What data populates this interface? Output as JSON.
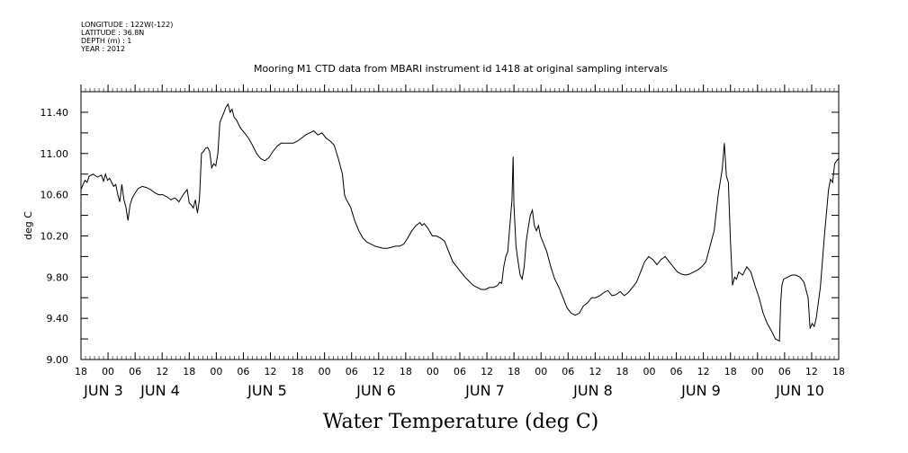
{
  "header_info": [
    "LONGITUDE : 122W(-122)",
    "LATITUDE : 36.8N",
    "DEPTH (m) : 1",
    "YEAR : 2012"
  ],
  "chart_data": {
    "type": "line",
    "title": "Mooring M1 CTD data from MBARI instrument id 1418 at original sampling intervals",
    "ylabel": "deg C",
    "xlabel": "Water Temperature (deg C)",
    "ylim": [
      9.0,
      11.6
    ],
    "y_ticks": [
      "9.00",
      "9.40",
      "9.80",
      "10.20",
      "10.60",
      "11.00",
      "11.40"
    ],
    "xlim_hours": [
      66,
      234
    ],
    "x_hour_ticks": [
      "18",
      "00",
      "06",
      "12",
      "18",
      "00",
      "06",
      "12",
      "18",
      "00",
      "06",
      "12",
      "18",
      "00",
      "06",
      "12",
      "18",
      "00",
      "06",
      "12",
      "18",
      "00",
      "06",
      "12",
      "18",
      "00",
      "06",
      "12",
      "18"
    ],
    "x_day_labels": [
      "JUN  3",
      "JUN  4",
      "JUN  5",
      "JUN  6",
      "JUN  7",
      "JUN  8",
      "JUN  9",
      "JUN 10"
    ],
    "series": [
      {
        "values": [
          [
            66.0,
            10.65
          ],
          [
            66.5,
            10.7
          ],
          [
            67.0,
            10.74
          ],
          [
            67.5,
            10.72
          ],
          [
            68.0,
            10.78
          ],
          [
            69.0,
            10.8
          ],
          [
            70.0,
            10.77
          ],
          [
            71.0,
            10.79
          ],
          [
            71.5,
            10.73
          ],
          [
            72.0,
            10.8
          ],
          [
            72.5,
            10.74
          ],
          [
            73.0,
            10.76
          ],
          [
            73.5,
            10.72
          ],
          [
            74.0,
            10.68
          ],
          [
            74.5,
            10.7
          ],
          [
            75.0,
            10.6
          ],
          [
            75.5,
            10.53
          ],
          [
            76.0,
            10.7
          ],
          [
            76.5,
            10.55
          ],
          [
            77.0,
            10.48
          ],
          [
            77.5,
            10.35
          ],
          [
            78.0,
            10.5
          ],
          [
            78.5,
            10.56
          ],
          [
            79.0,
            10.6
          ],
          [
            80.0,
            10.66
          ],
          [
            81.0,
            10.68
          ],
          [
            82.0,
            10.67
          ],
          [
            83.0,
            10.65
          ],
          [
            84.0,
            10.62
          ],
          [
            85.0,
            10.6
          ],
          [
            86.0,
            10.6
          ],
          [
            87.0,
            10.58
          ],
          [
            88.0,
            10.55
          ],
          [
            89.0,
            10.57
          ],
          [
            90.0,
            10.53
          ],
          [
            91.0,
            10.6
          ],
          [
            92.0,
            10.65
          ],
          [
            92.5,
            10.52
          ],
          [
            93.0,
            10.5
          ],
          [
            93.5,
            10.47
          ],
          [
            94.0,
            10.55
          ],
          [
            94.5,
            10.42
          ],
          [
            95.0,
            10.55
          ],
          [
            95.5,
            11.0
          ],
          [
            96.0,
            11.02
          ],
          [
            96.5,
            11.05
          ],
          [
            97.0,
            11.06
          ],
          [
            97.5,
            11.02
          ],
          [
            98.0,
            10.86
          ],
          [
            98.5,
            10.9
          ],
          [
            99.0,
            10.88
          ],
          [
            99.5,
            11.0
          ],
          [
            100.0,
            11.3
          ],
          [
            100.5,
            11.35
          ],
          [
            101.0,
            11.4
          ],
          [
            101.5,
            11.45
          ],
          [
            102.0,
            11.48
          ],
          [
            102.5,
            11.4
          ],
          [
            103.0,
            11.43
          ],
          [
            103.5,
            11.35
          ],
          [
            104.0,
            11.33
          ],
          [
            105.0,
            11.25
          ],
          [
            106.0,
            11.2
          ],
          [
            107.0,
            11.15
          ],
          [
            108.0,
            11.08
          ],
          [
            109.0,
            11.0
          ],
          [
            110.0,
            10.95
          ],
          [
            111.0,
            10.93
          ],
          [
            112.0,
            10.96
          ],
          [
            113.0,
            11.02
          ],
          [
            114.0,
            11.07
          ],
          [
            115.0,
            11.1
          ],
          [
            116.0,
            11.1
          ],
          [
            117.0,
            11.1
          ],
          [
            118.0,
            11.1
          ],
          [
            119.0,
            11.12
          ],
          [
            120.0,
            11.15
          ],
          [
            121.0,
            11.18
          ],
          [
            122.0,
            11.2
          ],
          [
            123.0,
            11.22
          ],
          [
            124.0,
            11.18
          ],
          [
            125.0,
            11.2
          ],
          [
            126.0,
            11.15
          ],
          [
            127.0,
            11.12
          ],
          [
            128.0,
            11.08
          ],
          [
            129.0,
            10.95
          ],
          [
            130.0,
            10.8
          ],
          [
            130.5,
            10.6
          ],
          [
            131.0,
            10.55
          ],
          [
            132.0,
            10.48
          ],
          [
            133.0,
            10.35
          ],
          [
            134.0,
            10.25
          ],
          [
            135.0,
            10.18
          ],
          [
            136.0,
            10.14
          ],
          [
            137.0,
            10.12
          ],
          [
            138.0,
            10.1
          ],
          [
            139.0,
            10.09
          ],
          [
            140.0,
            10.08
          ],
          [
            141.0,
            10.08
          ],
          [
            142.0,
            10.09
          ],
          [
            143.0,
            10.1
          ],
          [
            144.0,
            10.1
          ],
          [
            145.0,
            10.12
          ],
          [
            146.0,
            10.18
          ],
          [
            147.0,
            10.25
          ],
          [
            148.0,
            10.3
          ],
          [
            149.0,
            10.33
          ],
          [
            149.5,
            10.3
          ],
          [
            150.0,
            10.32
          ],
          [
            151.0,
            10.27
          ],
          [
            152.0,
            10.2
          ],
          [
            153.0,
            10.2
          ],
          [
            154.0,
            10.18
          ],
          [
            155.0,
            10.15
          ],
          [
            156.0,
            10.05
          ],
          [
            157.0,
            9.95
          ],
          [
            158.0,
            9.9
          ],
          [
            159.0,
            9.85
          ],
          [
            160.0,
            9.8
          ],
          [
            161.0,
            9.76
          ],
          [
            162.0,
            9.72
          ],
          [
            163.0,
            9.7
          ],
          [
            164.0,
            9.68
          ],
          [
            165.0,
            9.68
          ],
          [
            166.0,
            9.7
          ],
          [
            167.0,
            9.7
          ],
          [
            168.0,
            9.72
          ],
          [
            168.5,
            9.75
          ],
          [
            169.0,
            9.74
          ],
          [
            169.5,
            9.9
          ],
          [
            170.0,
            10.0
          ],
          [
            170.5,
            10.05
          ],
          [
            171.0,
            10.3
          ],
          [
            171.5,
            10.55
          ],
          [
            171.8,
            10.97
          ],
          [
            172.0,
            10.5
          ],
          [
            172.5,
            10.1
          ],
          [
            173.0,
            9.95
          ],
          [
            173.5,
            9.82
          ],
          [
            174.0,
            9.78
          ],
          [
            174.5,
            9.9
          ],
          [
            175.0,
            10.15
          ],
          [
            175.5,
            10.28
          ],
          [
            176.0,
            10.4
          ],
          [
            176.5,
            10.45
          ],
          [
            177.0,
            10.3
          ],
          [
            177.5,
            10.25
          ],
          [
            178.0,
            10.3
          ],
          [
            178.5,
            10.2
          ],
          [
            179.0,
            10.15
          ],
          [
            180.0,
            10.05
          ],
          [
            181.0,
            9.9
          ],
          [
            182.0,
            9.78
          ],
          [
            183.0,
            9.7
          ],
          [
            184.0,
            9.6
          ],
          [
            185.0,
            9.5
          ],
          [
            186.0,
            9.45
          ],
          [
            187.0,
            9.43
          ],
          [
            188.0,
            9.45
          ],
          [
            189.0,
            9.52
          ],
          [
            190.0,
            9.55
          ],
          [
            191.0,
            9.6
          ],
          [
            192.0,
            9.6
          ],
          [
            193.0,
            9.62
          ],
          [
            194.0,
            9.65
          ],
          [
            195.0,
            9.67
          ],
          [
            196.0,
            9.62
          ],
          [
            197.0,
            9.63
          ],
          [
            198.0,
            9.66
          ],
          [
            199.0,
            9.62
          ],
          [
            200.0,
            9.65
          ],
          [
            201.0,
            9.7
          ],
          [
            202.0,
            9.75
          ],
          [
            203.0,
            9.85
          ],
          [
            204.0,
            9.95
          ],
          [
            205.0,
            10.0
          ],
          [
            206.0,
            9.97
          ],
          [
            207.0,
            9.92
          ],
          [
            208.0,
            9.97
          ],
          [
            209.0,
            10.0
          ],
          [
            210.0,
            9.95
          ],
          [
            211.0,
            9.9
          ],
          [
            212.0,
            9.85
          ],
          [
            213.0,
            9.83
          ],
          [
            214.0,
            9.82
          ],
          [
            215.0,
            9.83
          ],
          [
            216.0,
            9.85
          ],
          [
            217.0,
            9.87
          ],
          [
            218.0,
            9.9
          ],
          [
            219.0,
            9.95
          ],
          [
            220.0,
            10.1
          ],
          [
            221.0,
            10.25
          ],
          [
            222.0,
            10.6
          ],
          [
            223.0,
            10.85
          ],
          [
            223.5,
            11.1
          ],
          [
            224.0,
            10.78
          ],
          [
            224.5,
            10.72
          ],
          [
            225.0,
            10.15
          ],
          [
            225.5,
            9.72
          ],
          [
            226.0,
            9.8
          ],
          [
            226.5,
            9.78
          ],
          [
            227.0,
            9.85
          ],
          [
            228.0,
            9.82
          ],
          [
            229.0,
            9.9
          ],
          [
            230.0,
            9.85
          ],
          [
            231.0,
            9.72
          ],
          [
            232.0,
            9.6
          ],
          [
            233.0,
            9.45
          ],
          [
            234.0,
            9.35
          ],
          [
            235.0,
            9.28
          ],
          [
            236.0,
            9.2
          ],
          [
            237.0,
            9.18
          ],
          [
            237.3,
            9.55
          ],
          [
            237.6,
            9.72
          ],
          [
            238.0,
            9.78
          ],
          [
            239.0,
            9.8
          ],
          [
            240.0,
            9.82
          ],
          [
            241.0,
            9.82
          ],
          [
            242.0,
            9.8
          ],
          [
            243.0,
            9.75
          ],
          [
            244.0,
            9.6
          ],
          [
            244.5,
            9.3
          ],
          [
            245.0,
            9.35
          ],
          [
            245.5,
            9.32
          ],
          [
            246.0,
            9.4
          ],
          [
            247.0,
            9.7
          ],
          [
            248.0,
            10.2
          ],
          [
            249.0,
            10.65
          ],
          [
            249.5,
            10.75
          ],
          [
            250.0,
            10.72
          ],
          [
            250.5,
            10.9
          ],
          [
            251.0,
            10.93
          ],
          [
            251.5,
            10.95
          ]
        ]
      }
    ],
    "x_start_hour": 66
  }
}
